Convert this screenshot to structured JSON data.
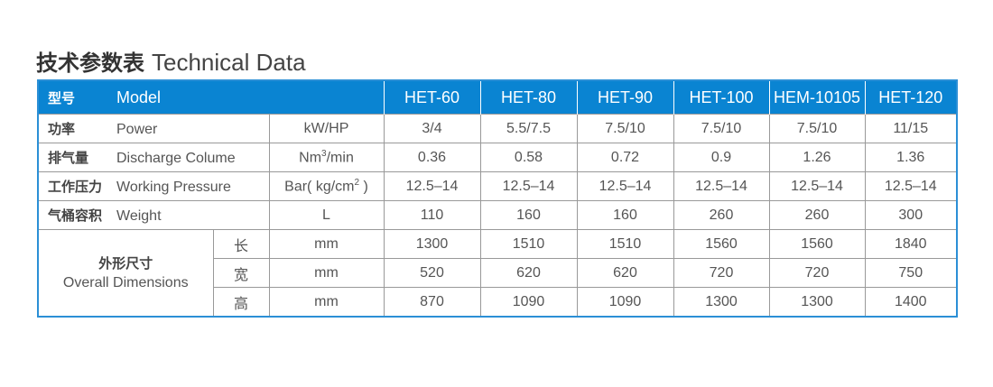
{
  "title": {
    "cn": "技术参数表",
    "en": "Technical Data"
  },
  "header": {
    "cn": "型号",
    "en": "Model",
    "models": [
      "HET-60",
      "HET-80",
      "HET-90",
      "HET-100",
      "HEM-10105",
      "HET-120"
    ]
  },
  "rows": [
    {
      "cn": "功率",
      "en": "Power",
      "unit": "kW/HP",
      "values": [
        "3/4",
        "5.5/7.5",
        "7.5/10",
        "7.5/10",
        "7.5/10",
        "11/15"
      ]
    },
    {
      "cn": "排气量",
      "en": "Discharge Colume",
      "unit_pre": "Nm",
      "unit_sup": "3",
      "unit_post": "/min",
      "values": [
        "0.36",
        "0.58",
        "0.72",
        "0.9",
        "1.26",
        "1.36"
      ]
    },
    {
      "cn": "工作压力",
      "en": "Working Pressure",
      "unit_pre": "Bar( kg/cm",
      "unit_sup": "2",
      "unit_post": " )",
      "values": [
        "12.5–14",
        "12.5–14",
        "12.5–14",
        "12.5–14",
        "12.5–14",
        "12.5–14"
      ]
    },
    {
      "cn": "气桶容积",
      "en": "Weight",
      "unit": "L",
      "values": [
        "110",
        "160",
        "160",
        "260",
        "260",
        "300"
      ]
    }
  ],
  "dimensions": {
    "cn": "外形尺寸",
    "en": "Overall Dimensions",
    "rows": [
      {
        "label": "长",
        "unit": "mm",
        "values": [
          "1300",
          "1510",
          "1510",
          "1560",
          "1560",
          "1840"
        ]
      },
      {
        "label": "宽",
        "unit": "mm",
        "values": [
          "520",
          "620",
          "620",
          "720",
          "720",
          "750"
        ]
      },
      {
        "label": "高",
        "unit": "mm",
        "values": [
          "870",
          "1090",
          "1090",
          "1300",
          "1300",
          "1400"
        ]
      }
    ]
  },
  "colors": {
    "header_bg": "#0a84d2",
    "border": "#2b8fd6"
  }
}
